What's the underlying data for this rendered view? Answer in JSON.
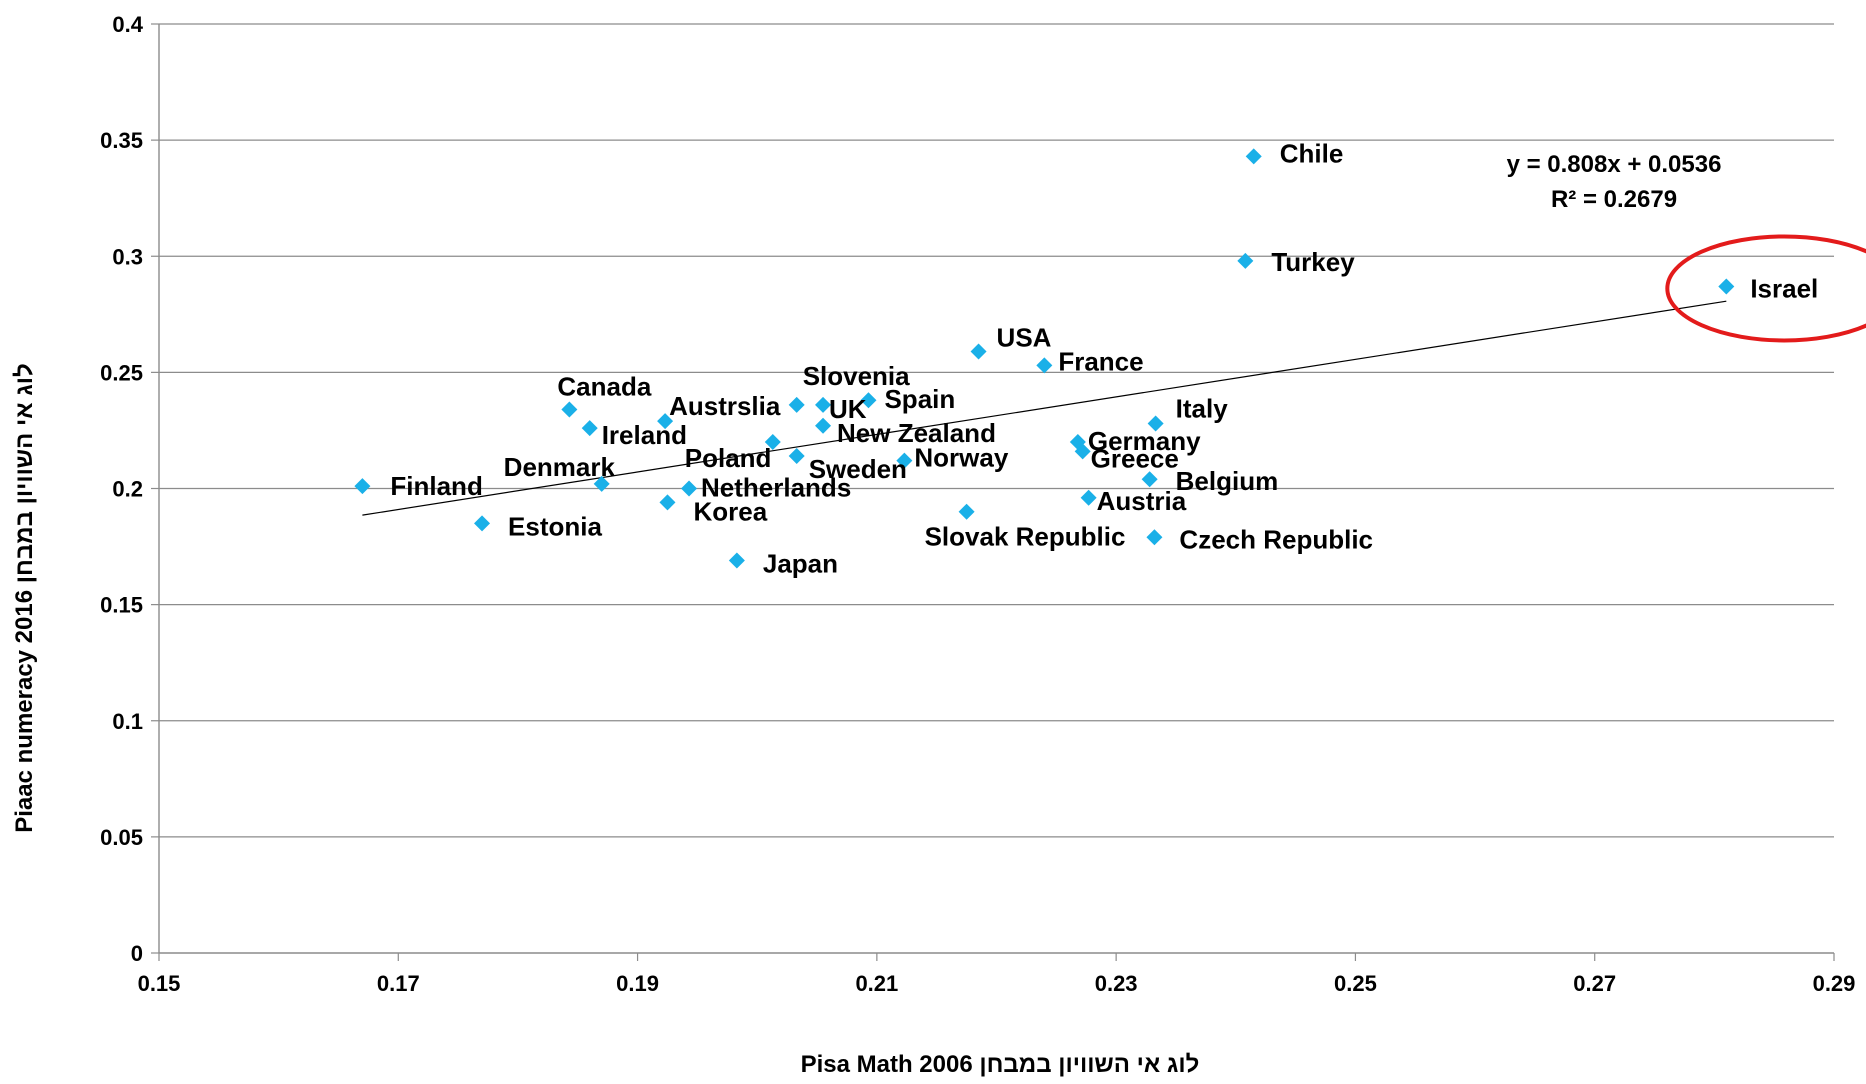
{
  "chart_data": {
    "type": "scatter",
    "title": "",
    "xlabel": "לוג אי השוויון במבחן  Pisa Math 2006",
    "ylabel": "לוג אי השוויון במבחן  Piaac numeracy 2016",
    "xlim": [
      0.15,
      0.29
    ],
    "ylim": [
      0,
      0.4
    ],
    "x_ticks": [
      "0.15",
      "0.17",
      "0.19",
      "0.21",
      "0.23",
      "0.25",
      "0.27",
      "0.29"
    ],
    "y_ticks": [
      "0",
      "0.05",
      "0.1",
      "0.15",
      "0.2",
      "0.25",
      "0.3",
      "0.35",
      "0.4"
    ],
    "grid": "horizontal",
    "marker_color": "#1ab0e8",
    "trendline": {
      "slope": 0.808,
      "intercept": 0.0536,
      "x_range": [
        0.167,
        0.281
      ],
      "equation": "y = 0.808x + 0.0536",
      "r_squared": "R² = 0.2679"
    },
    "highlight": {
      "label": "Israel",
      "color": "#1a6fc0",
      "circle_color": "#e31b1b"
    },
    "points": [
      {
        "label": "Finland",
        "x": 0.167,
        "y": 0.201
      },
      {
        "label": "Estonia",
        "x": 0.177,
        "y": 0.185
      },
      {
        "label": "Canada",
        "x": 0.1843,
        "y": 0.234
      },
      {
        "label": "Ireland",
        "x": 0.186,
        "y": 0.226
      },
      {
        "label": "Denmark",
        "x": 0.187,
        "y": 0.202
      },
      {
        "label": "Austrslia",
        "x": 0.1923,
        "y": 0.229
      },
      {
        "label": "Korea",
        "x": 0.1925,
        "y": 0.194
      },
      {
        "label": "Netherlands",
        "x": 0.1943,
        "y": 0.2
      },
      {
        "label": "Japan",
        "x": 0.1983,
        "y": 0.169
      },
      {
        "label": "Poland",
        "x": 0.2013,
        "y": 0.22
      },
      {
        "label": "Slovenia",
        "x": 0.2033,
        "y": 0.236
      },
      {
        "label": "Sweden",
        "x": 0.2033,
        "y": 0.214
      },
      {
        "label": "UK",
        "x": 0.2055,
        "y": 0.236
      },
      {
        "label": "New Zealand",
        "x": 0.2055,
        "y": 0.227
      },
      {
        "label": "Spain",
        "x": 0.2093,
        "y": 0.238
      },
      {
        "label": "Norway",
        "x": 0.2123,
        "y": 0.212
      },
      {
        "label": "Slovak Republic",
        "x": 0.2175,
        "y": 0.19
      },
      {
        "label": "USA",
        "x": 0.2185,
        "y": 0.259
      },
      {
        "label": "France",
        "x": 0.224,
        "y": 0.253
      },
      {
        "label": "Germany",
        "x": 0.2268,
        "y": 0.22
      },
      {
        "label": "Greece",
        "x": 0.2272,
        "y": 0.216
      },
      {
        "label": "Austria",
        "x": 0.2277,
        "y": 0.196
      },
      {
        "label": "Belgium",
        "x": 0.2328,
        "y": 0.204
      },
      {
        "label": "Czech Republic",
        "x": 0.2332,
        "y": 0.179
      },
      {
        "label": "Italy",
        "x": 0.2333,
        "y": 0.228
      },
      {
        "label": "Turkey",
        "x": 0.2408,
        "y": 0.298
      },
      {
        "label": "Chile",
        "x": 0.2415,
        "y": 0.343
      },
      {
        "label": "Israel",
        "x": 0.281,
        "y": 0.287
      }
    ]
  }
}
